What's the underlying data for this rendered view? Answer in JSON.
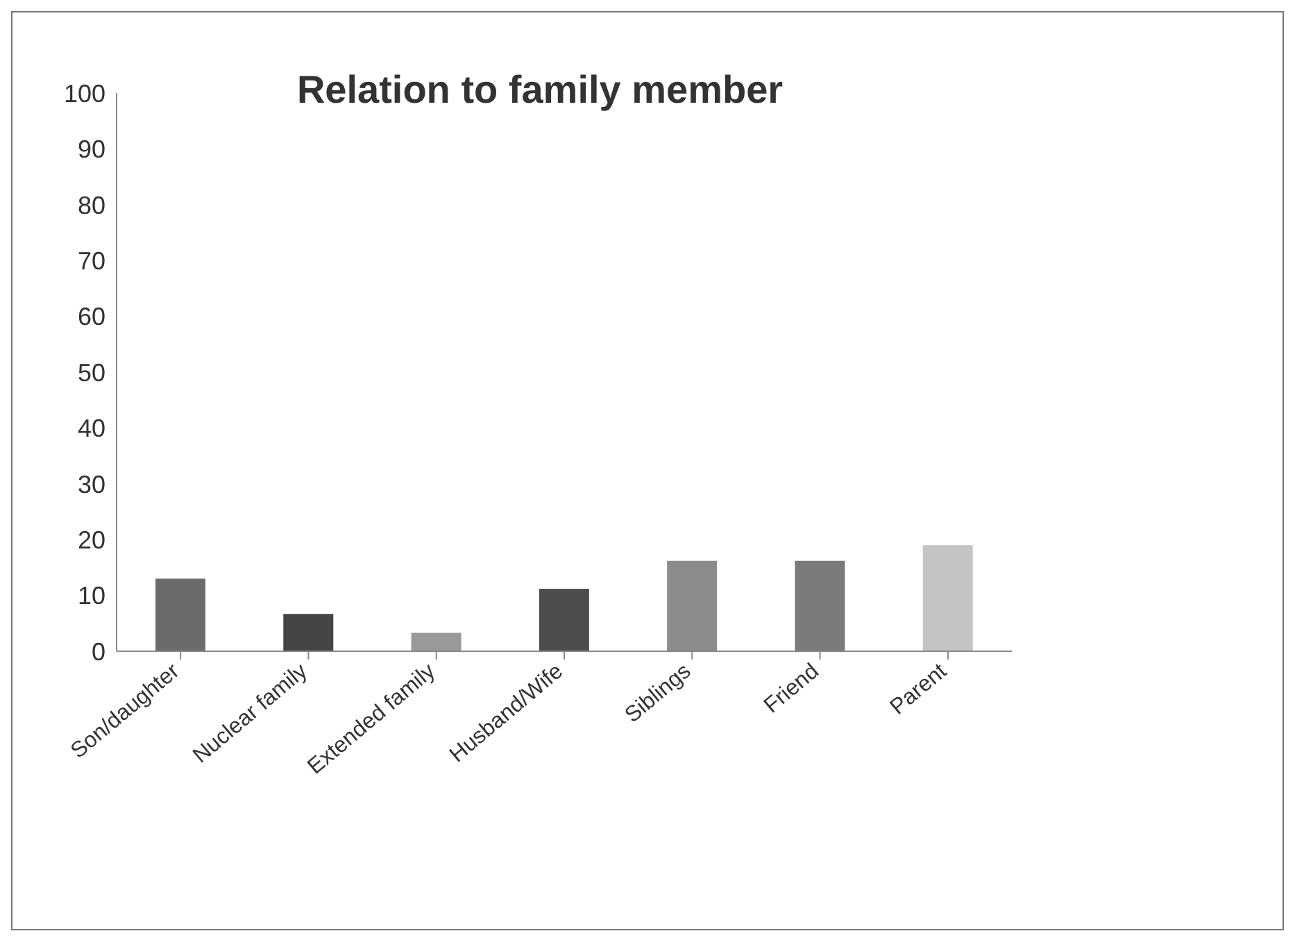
{
  "chart_data": {
    "type": "bar",
    "title": "Relation to family member",
    "categories": [
      "Son/daughter",
      "Nuclear family",
      "Extended family",
      "Husband/Wife",
      "Siblings",
      "Friend",
      "Parent"
    ],
    "values": [
      13,
      6.7,
      3.3,
      11.2,
      16.2,
      16.2,
      19
    ],
    "colors": [
      "#6b6b6b",
      "#454545",
      "#999999",
      "#4d4d4d",
      "#8c8c8c",
      "#7a7a7a",
      "#c4c4c4"
    ],
    "ylim": [
      0,
      100
    ],
    "yticks": [
      0,
      10,
      20,
      30,
      40,
      50,
      60,
      70,
      80,
      90,
      100
    ],
    "grid": false,
    "legend": false
  }
}
